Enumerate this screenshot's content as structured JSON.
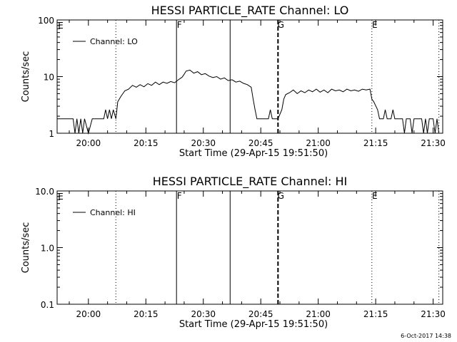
{
  "chart_data": [
    {
      "type": "line",
      "title": "HESSI PARTICLE_RATE Channel: LO",
      "xlabel": "Start Time (29-Apr-15 19:51:50)",
      "ylabel": "Counts/sec",
      "yscale": "log",
      "ylim": [
        1,
        100
      ],
      "ytick_labels": [
        "1",
        "10",
        "100"
      ],
      "xlim": [
        "19:51:50",
        "21:32:30"
      ],
      "xtick_labels": [
        "20:00",
        "20:15",
        "20:30",
        "20:45",
        "21:00",
        "21:15",
        "21:30"
      ],
      "legend": {
        "label": "Channel: LO",
        "position": "top-left"
      },
      "event_markers": [
        {
          "time": "20:07:10",
          "style": "dotted",
          "label": ""
        },
        {
          "time": "20:23:00",
          "style": "solid",
          "label": "F"
        },
        {
          "time": "20:37:00",
          "style": "solid",
          "label": ""
        },
        {
          "time": "20:49:30",
          "style": "dashed",
          "label": "G"
        },
        {
          "time": "21:14:00",
          "style": "dotted",
          "label": "E"
        },
        {
          "time": "21:31:30",
          "style": "dotted",
          "label": ""
        }
      ],
      "corner_label": "E",
      "series": [
        {
          "name": "Channel: LO",
          "points": [
            [
              "19:51:50",
              1.8
            ],
            [
              "19:56:00",
              1.8
            ],
            [
              "19:56:30",
              1.0
            ],
            [
              "19:57:00",
              1.8
            ],
            [
              "19:57:30",
              1.0
            ],
            [
              "19:58:00",
              1.8
            ],
            [
              "19:58:30",
              1.0
            ],
            [
              "19:59:00",
              1.8
            ],
            [
              "20:00:00",
              1.0
            ],
            [
              "20:01:00",
              1.8
            ],
            [
              "20:04:00",
              1.8
            ],
            [
              "20:04:30",
              2.6
            ],
            [
              "20:05:00",
              1.8
            ],
            [
              "20:05:30",
              2.6
            ],
            [
              "20:06:00",
              1.8
            ],
            [
              "20:06:30",
              2.6
            ],
            [
              "20:07:10",
              1.8
            ],
            [
              "20:07:40",
              3.6
            ],
            [
              "20:08:30",
              4.5
            ],
            [
              "20:09:30",
              5.6
            ],
            [
              "20:10:30",
              6.0
            ],
            [
              "20:11:30",
              7.0
            ],
            [
              "20:12:30",
              6.5
            ],
            [
              "20:13:30",
              7.2
            ],
            [
              "20:14:30",
              6.6
            ],
            [
              "20:15:30",
              7.5
            ],
            [
              "20:16:30",
              7.0
            ],
            [
              "20:17:30",
              8.0
            ],
            [
              "20:18:30",
              7.2
            ],
            [
              "20:19:30",
              8.0
            ],
            [
              "20:20:30",
              7.6
            ],
            [
              "20:21:30",
              8.2
            ],
            [
              "20:22:30",
              7.8
            ],
            [
              "20:23:30",
              8.8
            ],
            [
              "20:24:30",
              9.8
            ],
            [
              "20:25:00",
              11.0
            ],
            [
              "20:25:30",
              12.5
            ],
            [
              "20:26:30",
              13.0
            ],
            [
              "20:27:30",
              11.5
            ],
            [
              "20:28:30",
              12.2
            ],
            [
              "20:29:30",
              10.8
            ],
            [
              "20:30:30",
              11.3
            ],
            [
              "20:31:30",
              10.2
            ],
            [
              "20:32:30",
              9.6
            ],
            [
              "20:33:30",
              10.0
            ],
            [
              "20:34:30",
              9.0
            ],
            [
              "20:35:30",
              9.5
            ],
            [
              "20:36:30",
              8.5
            ],
            [
              "20:37:30",
              8.8
            ],
            [
              "20:38:30",
              8.0
            ],
            [
              "20:39:30",
              8.3
            ],
            [
              "20:40:30",
              7.6
            ],
            [
              "20:41:30",
              7.2
            ],
            [
              "20:42:30",
              6.5
            ],
            [
              "20:43:00",
              4.0
            ],
            [
              "20:43:30",
              2.6
            ],
            [
              "20:44:00",
              1.8
            ],
            [
              "20:47:00",
              1.8
            ],
            [
              "20:47:30",
              2.6
            ],
            [
              "20:48:00",
              1.8
            ],
            [
              "20:49:30",
              1.8
            ],
            [
              "20:50:30",
              2.6
            ],
            [
              "20:51:00",
              4.0
            ],
            [
              "20:51:30",
              4.8
            ],
            [
              "20:52:30",
              5.2
            ],
            [
              "20:53:30",
              5.8
            ],
            [
              "20:54:30",
              5.0
            ],
            [
              "20:55:30",
              5.6
            ],
            [
              "20:56:30",
              5.2
            ],
            [
              "20:57:30",
              5.8
            ],
            [
              "20:58:30",
              5.4
            ],
            [
              "20:59:30",
              6.0
            ],
            [
              "21:00:30",
              5.3
            ],
            [
              "21:01:30",
              5.8
            ],
            [
              "21:02:30",
              5.2
            ],
            [
              "21:03:30",
              6.0
            ],
            [
              "21:04:30",
              5.6
            ],
            [
              "21:05:30",
              5.8
            ],
            [
              "21:06:30",
              5.4
            ],
            [
              "21:07:30",
              6.0
            ],
            [
              "21:08:30",
              5.6
            ],
            [
              "21:09:30",
              5.8
            ],
            [
              "21:10:30",
              5.5
            ],
            [
              "21:11:30",
              6.0
            ],
            [
              "21:12:30",
              5.8
            ],
            [
              "21:13:30",
              6.0
            ],
            [
              "21:14:00",
              4.0
            ],
            [
              "21:14:30",
              3.6
            ],
            [
              "21:15:30",
              2.6
            ],
            [
              "21:16:00",
              1.8
            ],
            [
              "21:17:00",
              1.8
            ],
            [
              "21:17:30",
              2.6
            ],
            [
              "21:18:00",
              1.8
            ],
            [
              "21:19:00",
              1.8
            ],
            [
              "21:19:30",
              2.6
            ],
            [
              "21:20:00",
              1.8
            ],
            [
              "21:22:00",
              1.8
            ],
            [
              "21:22:30",
              1.0
            ],
            [
              "21:23:00",
              1.8
            ],
            [
              "21:24:00",
              1.8
            ],
            [
              "21:24:30",
              1.0
            ],
            [
              "21:25:00",
              1.8
            ],
            [
              "21:27:00",
              1.8
            ],
            [
              "21:27:30",
              1.0
            ],
            [
              "21:28:00",
              1.8
            ],
            [
              "21:28:30",
              1.0
            ],
            [
              "21:29:00",
              1.8
            ],
            [
              "21:30:00",
              1.8
            ],
            [
              "21:30:30",
              1.0
            ],
            [
              "21:31:00",
              1.8
            ],
            [
              "21:31:30",
              1.0
            ]
          ]
        }
      ]
    },
    {
      "type": "line",
      "title": "HESSI PARTICLE_RATE Channel: HI",
      "xlabel": "Start Time (29-Apr-15 19:51:50)",
      "ylabel": "Counts/sec",
      "yscale": "log",
      "ylim": [
        0.1,
        10.0
      ],
      "ytick_labels": [
        "0.1",
        "1.0",
        "10.0"
      ],
      "xlim": [
        "19:51:50",
        "21:32:30"
      ],
      "xtick_labels": [
        "20:00",
        "20:15",
        "20:30",
        "20:45",
        "21:00",
        "21:15",
        "21:30"
      ],
      "legend": {
        "label": "Channel: HI",
        "position": "top-left"
      },
      "event_markers": [
        {
          "time": "20:07:10",
          "style": "dotted",
          "label": ""
        },
        {
          "time": "20:23:00",
          "style": "solid",
          "label": "F"
        },
        {
          "time": "20:37:00",
          "style": "solid",
          "label": ""
        },
        {
          "time": "20:49:30",
          "style": "dashed",
          "label": "G"
        },
        {
          "time": "21:14:00",
          "style": "dotted",
          "label": "E"
        },
        {
          "time": "21:31:30",
          "style": "dotted",
          "label": ""
        }
      ],
      "corner_label": "E",
      "series": [
        {
          "name": "Channel: HI",
          "points": []
        }
      ]
    }
  ],
  "footer": {
    "date_stamp": "6-Oct-2017 14:38"
  }
}
